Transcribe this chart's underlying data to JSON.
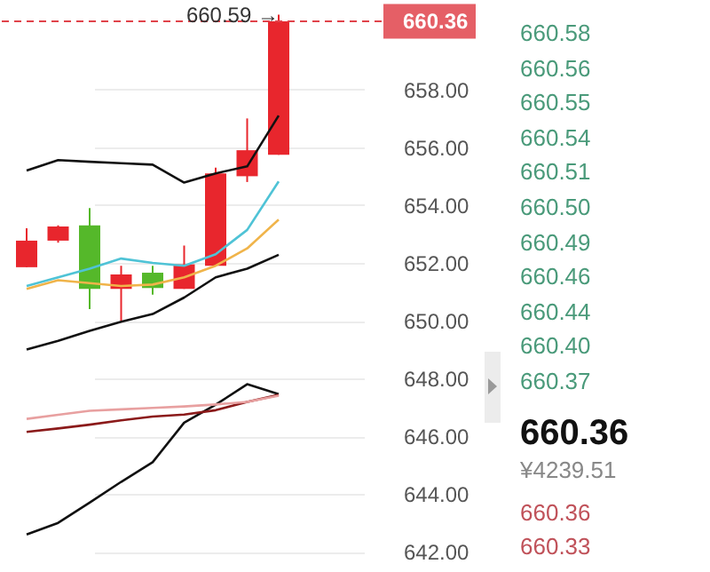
{
  "chart_data": {
    "type": "candlestick",
    "categories": [
      null,
      null,
      null,
      null,
      null,
      null,
      null,
      null,
      null
    ],
    "ohlc": [
      [
        651.85,
        653.2,
        651.85,
        652.77
      ],
      [
        652.77,
        653.3,
        652.7,
        653.26
      ],
      [
        653.3,
        653.9,
        650.4,
        651.1
      ],
      [
        651.1,
        651.9,
        650.0,
        651.6
      ],
      [
        651.66,
        651.9,
        650.9,
        651.13
      ],
      [
        651.1,
        652.6,
        651.1,
        651.95
      ],
      [
        651.9,
        655.3,
        651.9,
        655.1
      ],
      [
        655.0,
        657.0,
        654.8,
        655.9
      ],
      [
        655.74,
        660.59,
        655.74,
        660.36
      ]
    ],
    "colors": [
      "#e8262d",
      "#e8262d",
      "#55b82a",
      "#e8262d",
      "#55b82a",
      "#e8262d",
      "#e8262d",
      "#e8262d",
      "#e8262d"
    ],
    "series": [
      {
        "type": "line",
        "color": "#111111",
        "values": [
          655.2,
          655.56,
          655.5,
          655.45,
          655.4,
          654.78,
          655.1,
          655.34,
          657.1
        ]
      },
      {
        "type": "line",
        "color": "#111111",
        "values": [
          649.0,
          649.3,
          649.65,
          649.96,
          650.23,
          650.8,
          651.5,
          651.8,
          652.28
        ]
      },
      {
        "type": "line",
        "color": "#4fc3d6",
        "values": [
          651.2,
          651.5,
          651.8,
          652.15,
          652.0,
          651.9,
          652.3,
          653.14,
          654.82
        ]
      },
      {
        "type": "line",
        "color": "#f0b44a",
        "values": [
          651.1,
          651.4,
          651.3,
          651.2,
          651.25,
          651.5,
          651.9,
          652.5,
          653.5
        ]
      },
      {
        "type": "line",
        "color": "#111111",
        "values": [
          642.6,
          643.0,
          643.7,
          644.42,
          645.1,
          646.47,
          647.09,
          647.8,
          647.46
        ]
      },
      {
        "type": "line",
        "color": "#8b1a1a",
        "values": [
          646.15,
          646.27,
          646.4,
          646.55,
          646.68,
          646.75,
          646.9,
          647.19,
          647.43
        ]
      },
      {
        "type": "line",
        "color": "#e8a0a0",
        "values": [
          646.6,
          646.74,
          646.88,
          646.93,
          646.98,
          647.03,
          647.1,
          647.19,
          647.4
        ]
      }
    ],
    "ylim": [
      641.3,
      661.1
    ],
    "yticks": [
      {
        "value": 642,
        "label": "642.00"
      },
      {
        "value": 644,
        "label": "644.00"
      },
      {
        "value": 646,
        "label": "646.00"
      },
      {
        "value": 648,
        "label": "648.00"
      },
      {
        "value": 650,
        "label": "650.00"
      },
      {
        "value": 652,
        "label": "652.00"
      },
      {
        "value": 654,
        "label": "654.00"
      },
      {
        "value": 656,
        "label": "656.00"
      },
      {
        "value": 658,
        "label": "658.00"
      }
    ],
    "ref_lines": [
      {
        "axis": "y",
        "value": 660.36,
        "label": "660.36",
        "color": "#e0434b",
        "line_style": "dashed"
      }
    ],
    "annotations": [
      {
        "text": "660.59 →",
        "y": 660.59
      },
      "660.58",
      "660.56",
      "660.55",
      "660.54",
      "660.51",
      "660.50",
      "660.49",
      "660.46",
      "660.44",
      "660.40",
      "660.37",
      "660.36",
      "¥4239.51",
      "660.36",
      "660.33"
    ],
    "grid": "y",
    "tick_labels": "y"
  }
}
